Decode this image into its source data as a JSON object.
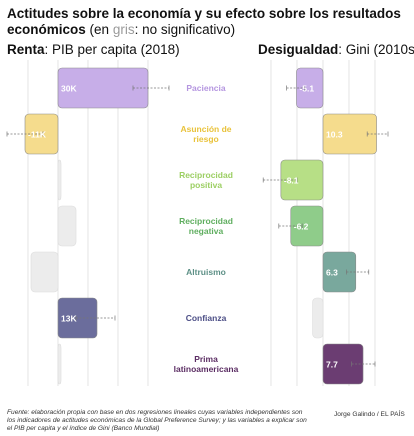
{
  "header": {
    "title_bold": "Actitudes sobre la economía y su efecto sobre los resultados económicos",
    "title_paren_open": "(en ",
    "title_gray_word": "gris",
    "title_paren_close": ": no significativo)"
  },
  "left_panel": {
    "title_bold": "Renta",
    "title_rest": ": PIB per capita (2018)"
  },
  "right_panel": {
    "title_bold": "Desigualdad",
    "title_rest": ": Gini (2010s)"
  },
  "footer": {
    "source": "Fuente: elaboración propia con base en dos regresiones lineales cuyas variables independientes son los indicadores de actitudes económicas de la Global Preference Survey; y las variables a explicar son el PIB per capita y el índice de Gini (Banco Mundial)",
    "byline": "Jorge Galindo / EL PAÍS"
  },
  "chart_data": [
    {
      "type": "bar",
      "orientation": "horizontal",
      "title": "Renta: PIB per capita (2018)",
      "categories": [
        "Paciencia",
        "Asunción de riesgo",
        "Reciprocidad positiva",
        "Reciprocidad negativa",
        "Altruismo",
        "Confianza",
        "Prima latinoamericana"
      ],
      "values": [
        30,
        -11,
        1,
        6,
        -9,
        13,
        1
      ],
      "labels": [
        "30K",
        "-11K",
        "",
        "",
        "",
        "13K",
        ""
      ],
      "error_low": [
        25,
        -17,
        -1,
        3,
        -11,
        6,
        -1
      ],
      "error_high": [
        37,
        -5,
        3,
        10,
        -7,
        19,
        3
      ],
      "significant": [
        true,
        true,
        false,
        false,
        false,
        true,
        false
      ],
      "unit": "K"
    },
    {
      "type": "bar",
      "orientation": "horizontal",
      "title": "Desigualdad: Gini (2010s)",
      "categories": [
        "Paciencia",
        "Asunción de riesgo",
        "Reciprocidad positiva",
        "Reciprocidad negativa",
        "Altruismo",
        "Confianza",
        "Prima latinoamericana"
      ],
      "values": [
        -5.1,
        10.3,
        -8.1,
        -6.2,
        6.3,
        -2,
        7.7
      ],
      "labels": [
        "-5.1",
        "10.3",
        "-8.1",
        "-6.2",
        "6.3",
        "",
        "7.7"
      ],
      "error_low": [
        -7,
        8.5,
        -11.5,
        -8.5,
        4.5,
        -3.5,
        5.5
      ],
      "error_high": [
        -3.5,
        12.5,
        -5,
        -4,
        8.8,
        -0.5,
        10
      ],
      "significant": [
        true,
        true,
        true,
        true,
        true,
        false,
        true
      ]
    }
  ],
  "colors": {
    "Paciencia": "#c7aee8",
    "Asunción de riesgo": "#f5dc8d",
    "Reciprocidad positiva": "#b7df86",
    "Reciprocidad negativa": "#8fcc8a",
    "Altruismo": "#79a89d",
    "Confianza": "#6b6d9c",
    "Prima latinoamericana": "#6b3d72",
    "label_Paciencia": "#b596e0",
    "label_Asunción de riesgo": "#e9c23a",
    "label_Reciprocidad positiva": "#9ccf63",
    "label_Reciprocidad negativa": "#5fae5f",
    "label_Altruismo": "#5d9086",
    "label_Confianza": "#4c4e86",
    "label_Prima latinoamericana": "#5b2d63",
    "not_significant": "#ececec",
    "grid": "#dddddd"
  }
}
